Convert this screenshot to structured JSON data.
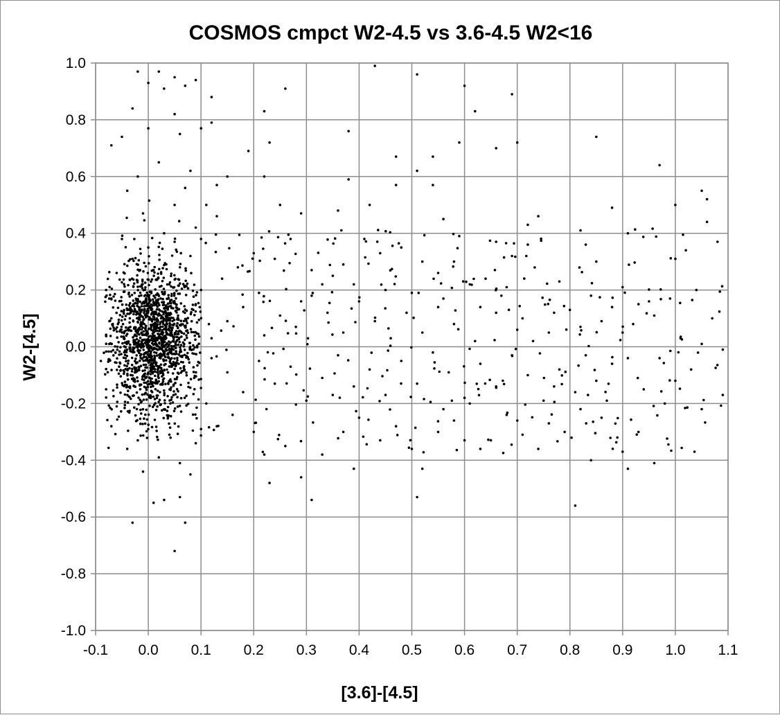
{
  "chart_data": {
    "type": "scatter",
    "title": "COSMOS cmpct W2-4.5 vs 3.6-4.5 W2<16",
    "xlabel": "[3.6]-[4.5]",
    "ylabel": "W2-[4.5]",
    "xlim": [
      -0.1,
      1.1
    ],
    "ylim": [
      -1.0,
      1.0
    ],
    "x_ticks": [
      "-0.1",
      "0.0",
      "0.1",
      "0.2",
      "0.3",
      "0.4",
      "0.5",
      "0.6",
      "0.7",
      "0.8",
      "0.9",
      "1.0",
      "1.1"
    ],
    "y_ticks": [
      "1.0",
      "0.8",
      "0.6",
      "0.4",
      "0.2",
      "0.0",
      "-0.2",
      "-0.4",
      "-0.6",
      "-0.8",
      "-1.0"
    ],
    "grid": true,
    "legend": "none",
    "marker_color": "#000000",
    "series": [
      {
        "points": [
          [
            -0.02,
            0.97
          ],
          [
            0.0,
            0.93
          ],
          [
            0.02,
            0.97
          ],
          [
            0.03,
            0.91
          ],
          [
            0.05,
            0.95
          ],
          [
            0.07,
            0.92
          ],
          [
            0.09,
            0.94
          ],
          [
            -0.03,
            0.84
          ],
          [
            0.05,
            0.82
          ],
          [
            0.12,
            0.88
          ],
          [
            -0.05,
            0.74
          ],
          [
            -0.07,
            0.71
          ],
          [
            0.0,
            0.77
          ],
          [
            0.06,
            0.75
          ],
          [
            0.08,
            0.62
          ],
          [
            0.1,
            0.77
          ],
          [
            0.12,
            0.79
          ],
          [
            0.15,
            0.6
          ],
          [
            0.19,
            0.69
          ],
          [
            0.22,
            0.83
          ],
          [
            0.23,
            0.72
          ],
          [
            0.26,
            0.91
          ],
          [
            0.38,
            0.76
          ],
          [
            0.43,
            0.99
          ],
          [
            0.51,
            0.96
          ],
          [
            0.6,
            0.92
          ],
          [
            0.62,
            0.83
          ],
          [
            0.69,
            0.89
          ],
          [
            0.7,
            0.72
          ],
          [
            0.66,
            0.7
          ],
          [
            0.59,
            0.72
          ],
          [
            0.54,
            0.67
          ],
          [
            0.47,
            0.67
          ],
          [
            0.85,
            0.74
          ],
          [
            0.97,
            0.64
          ],
          [
            1.0,
            0.5
          ],
          [
            1.05,
            0.55
          ],
          [
            1.06,
            0.52
          ],
          [
            1.06,
            0.44
          ],
          [
            1.08,
            0.37
          ],
          [
            0.91,
            0.4
          ],
          [
            0.88,
            0.49
          ],
          [
            0.82,
            0.41
          ],
          [
            0.74,
            0.46
          ],
          [
            0.72,
            0.43
          ],
          [
            0.69,
            0.32
          ],
          [
            0.66,
            0.37
          ],
          [
            0.59,
            0.39
          ],
          [
            0.56,
            0.45
          ],
          [
            0.54,
            0.57
          ],
          [
            0.51,
            0.62
          ],
          [
            0.47,
            0.57
          ],
          [
            0.42,
            0.5
          ],
          [
            0.38,
            0.59
          ],
          [
            0.36,
            0.48
          ],
          [
            0.29,
            0.47
          ],
          [
            0.25,
            0.5
          ],
          [
            0.22,
            0.6
          ],
          [
            0.13,
            0.57
          ],
          [
            0.11,
            0.5
          ],
          [
            0.13,
            0.46
          ],
          [
            0.2,
            0.33
          ],
          [
            0.24,
            0.31
          ],
          [
            0.27,
            0.38
          ],
          [
            0.31,
            0.27
          ],
          [
            0.33,
            0.22
          ],
          [
            0.37,
            0.29
          ],
          [
            0.41,
            0.38
          ],
          [
            0.44,
            0.33
          ],
          [
            0.48,
            0.35
          ],
          [
            0.52,
            0.3
          ],
          [
            0.55,
            0.26
          ],
          [
            0.58,
            0.3
          ],
          [
            0.61,
            0.22
          ],
          [
            0.64,
            0.24
          ],
          [
            0.68,
            0.21
          ],
          [
            0.72,
            0.36
          ],
          [
            0.78,
            0.23
          ],
          [
            0.83,
            0.36
          ],
          [
            0.85,
            0.3
          ],
          [
            0.9,
            0.21
          ],
          [
            0.93,
            0.15
          ],
          [
            0.96,
            0.11
          ],
          [
            1.0,
            0.31
          ],
          [
            1.02,
            0.34
          ],
          [
            1.04,
            0.2
          ],
          [
            1.07,
            0.1
          ],
          [
            0.99,
            0.17
          ],
          [
            0.9,
            0.05
          ],
          [
            0.86,
            0.09
          ],
          [
            0.82,
            0.07
          ],
          [
            0.77,
            0.12
          ],
          [
            0.73,
            0.02
          ],
          [
            0.7,
            0.06
          ],
          [
            0.66,
            0.12
          ],
          [
            0.62,
            0.02
          ],
          [
            0.58,
            0.08
          ],
          [
            0.55,
            0.14
          ],
          [
            0.52,
            0.05
          ],
          [
            0.49,
            0.12
          ],
          [
            0.46,
            0.03
          ],
          [
            0.43,
            0.09
          ],
          [
            0.4,
            0.16
          ],
          [
            0.37,
            0.05
          ],
          [
            0.34,
            0.12
          ],
          [
            0.31,
            0.18
          ],
          [
            0.28,
            0.07
          ],
          [
            0.25,
            0.11
          ],
          [
            0.22,
            0.04
          ],
          [
            0.18,
            0.14
          ],
          [
            0.15,
            0.09
          ],
          [
            0.12,
            0.03
          ],
          [
            0.14,
            0.24
          ],
          [
            0.17,
            0.28
          ],
          [
            0.21,
            0.19
          ],
          [
            0.29,
            0.16
          ],
          [
            0.35,
            0.25
          ],
          [
            0.39,
            0.22
          ],
          [
            0.45,
            0.2
          ],
          [
            0.5,
            0.19
          ],
          [
            0.56,
            0.17
          ],
          [
            0.63,
            0.14
          ],
          [
            0.67,
            0.18
          ],
          [
            0.71,
            0.1
          ],
          [
            0.76,
            0.05
          ],
          [
            0.8,
            0.13
          ],
          [
            0.84,
            0.18
          ],
          [
            0.88,
            0.14
          ],
          [
            0.92,
            0.08
          ],
          [
            0.95,
            0.16
          ],
          [
            1.01,
            0.03
          ],
          [
            1.05,
            0.01
          ],
          [
            1.09,
            -0.01
          ],
          [
            1.09,
            -0.17
          ],
          [
            1.05,
            -0.22
          ],
          [
            1.03,
            -0.08
          ],
          [
            1.0,
            -0.12
          ],
          [
            0.97,
            -0.04
          ],
          [
            0.94,
            -0.15
          ],
          [
            0.91,
            -0.04
          ],
          [
            0.88,
            -0.06
          ],
          [
            0.85,
            -0.12
          ],
          [
            0.83,
            -0.03
          ],
          [
            0.81,
            -0.16
          ],
          [
            0.78,
            -0.08
          ],
          [
            0.75,
            -0.19
          ],
          [
            0.72,
            -0.1
          ],
          [
            0.69,
            -0.03
          ],
          [
            0.66,
            -0.14
          ],
          [
            0.63,
            -0.06
          ],
          [
            0.6,
            -0.18
          ],
          [
            0.57,
            -0.09
          ],
          [
            0.54,
            -0.02
          ],
          [
            0.51,
            -0.13
          ],
          [
            0.48,
            -0.05
          ],
          [
            0.45,
            -0.17
          ],
          [
            0.42,
            -0.08
          ],
          [
            0.39,
            -0.14
          ],
          [
            0.36,
            -0.03
          ],
          [
            0.33,
            -0.11
          ],
          [
            0.3,
            -0.19
          ],
          [
            0.27,
            -0.07
          ],
          [
            0.24,
            -0.13
          ],
          [
            0.21,
            -0.05
          ],
          [
            0.18,
            -0.16
          ],
          [
            0.15,
            -0.09
          ],
          [
            0.12,
            -0.04
          ],
          [
            0.11,
            -0.2
          ],
          [
            0.13,
            -0.28
          ],
          [
            0.16,
            -0.24
          ],
          [
            0.2,
            -0.3
          ],
          [
            0.22,
            -0.38
          ],
          [
            0.23,
            -0.48
          ],
          [
            0.26,
            -0.35
          ],
          [
            0.29,
            -0.46
          ],
          [
            0.31,
            -0.54
          ],
          [
            0.33,
            -0.38
          ],
          [
            0.37,
            -0.3
          ],
          [
            0.39,
            -0.43
          ],
          [
            0.4,
            -0.25
          ],
          [
            0.44,
            -0.33
          ],
          [
            0.47,
            -0.28
          ],
          [
            0.5,
            -0.36
          ],
          [
            0.51,
            -0.53
          ],
          [
            0.52,
            -0.43
          ],
          [
            0.55,
            -0.3
          ],
          [
            0.58,
            -0.26
          ],
          [
            0.6,
            -0.33
          ],
          [
            0.63,
            -0.36
          ],
          [
            0.65,
            -0.33
          ],
          [
            0.68,
            -0.24
          ],
          [
            0.71,
            -0.31
          ],
          [
            0.74,
            -0.36
          ],
          [
            0.76,
            -0.27
          ],
          [
            0.79,
            -0.3
          ],
          [
            0.81,
            -0.56
          ],
          [
            0.84,
            -0.4
          ],
          [
            0.86,
            -0.25
          ],
          [
            0.89,
            -0.32
          ],
          [
            0.9,
            -0.37
          ],
          [
            0.91,
            -0.43
          ],
          [
            0.93,
            -0.3
          ],
          [
            0.96,
            -0.41
          ],
          [
            0.98,
            -0.2
          ],
          [
            0.56,
            -0.22
          ],
          [
            0.61,
            -0.2
          ],
          [
            0.7,
            -0.26
          ],
          [
            0.77,
            -0.14
          ],
          [
            0.82,
            -0.22
          ],
          [
            0.87,
            -0.19
          ],
          [
            -0.02,
            0.6
          ],
          [
            0.02,
            0.65
          ],
          [
            -0.04,
            0.55
          ],
          [
            0.05,
            0.5
          ],
          [
            -0.01,
            0.47
          ],
          [
            0.07,
            0.56
          ],
          [
            0.03,
            0.4
          ],
          [
            -0.05,
            0.38
          ],
          [
            0.09,
            0.42
          ],
          [
            -0.08,
            0.2
          ],
          [
            -0.07,
            0.1
          ],
          [
            -0.09,
            -0.05
          ],
          [
            -0.08,
            -0.15
          ],
          [
            -0.07,
            -0.28
          ],
          [
            -0.06,
            -0.21
          ],
          [
            -0.04,
            -0.36
          ],
          [
            -0.03,
            -0.62
          ],
          [
            -0.01,
            -0.44
          ],
          [
            0.01,
            -0.55
          ],
          [
            0.03,
            -0.54
          ],
          [
            0.06,
            -0.53
          ],
          [
            0.07,
            -0.62
          ],
          [
            0.05,
            -0.72
          ],
          [
            0.02,
            -0.39
          ],
          [
            0.06,
            -0.41
          ],
          [
            0.09,
            -0.34
          ],
          [
            0.08,
            -0.45
          ],
          [
            0.1,
            -0.29
          ],
          [
            0.04,
            -0.31
          ],
          [
            -0.02,
            -0.33
          ],
          [
            0.08,
            0.32
          ],
          [
            0.1,
            0.38
          ],
          [
            0.06,
            0.28
          ],
          [
            -0.03,
            0.31
          ],
          [
            0.01,
            0.27
          ],
          [
            0.04,
            0.22
          ],
          [
            -0.06,
            0.26
          ],
          [
            0.1,
            0.2
          ],
          [
            0.09,
            0.15
          ],
          [
            -0.07,
            0.17
          ],
          [
            0.0,
            0.35
          ],
          [
            0.05,
            0.37
          ]
        ]
      }
    ]
  }
}
